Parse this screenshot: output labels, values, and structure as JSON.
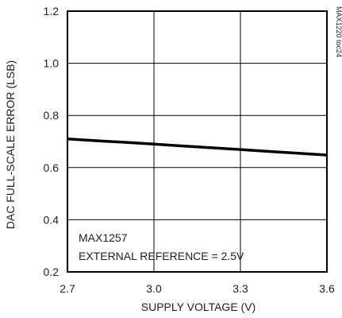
{
  "chart_data": {
    "type": "line",
    "title": "",
    "xlabel": "SUPPLY VOLTAGE (V)",
    "ylabel": "DAC FULL-SCALE ERROR (LSB)",
    "xlim": [
      2.7,
      3.6
    ],
    "ylim": [
      0.2,
      1.2
    ],
    "xticks": [
      2.7,
      3.0,
      3.3,
      3.6
    ],
    "xtick_labels": [
      "2.7",
      "3.0",
      "3.3",
      "3.6"
    ],
    "yticks": [
      0.2,
      0.4,
      0.6,
      0.8,
      1.0,
      1.2
    ],
    "ytick_labels": [
      "0.2",
      "0.4",
      "0.6",
      "0.8",
      "1.0",
      "1.2"
    ],
    "grid": true,
    "series": [
      {
        "x": [
          2.7,
          2.8,
          2.9,
          3.0,
          3.1,
          3.2,
          3.3,
          3.4,
          3.5,
          3.6
        ],
        "values": [
          0.71,
          0.703,
          0.697,
          0.69,
          0.683,
          0.676,
          0.669,
          0.662,
          0.655,
          0.648
        ]
      }
    ],
    "annotations": [
      "MAX1257",
      "EXTERNAL REFERENCE = 2.5V"
    ],
    "side_label": "MAX1220 toc24"
  }
}
